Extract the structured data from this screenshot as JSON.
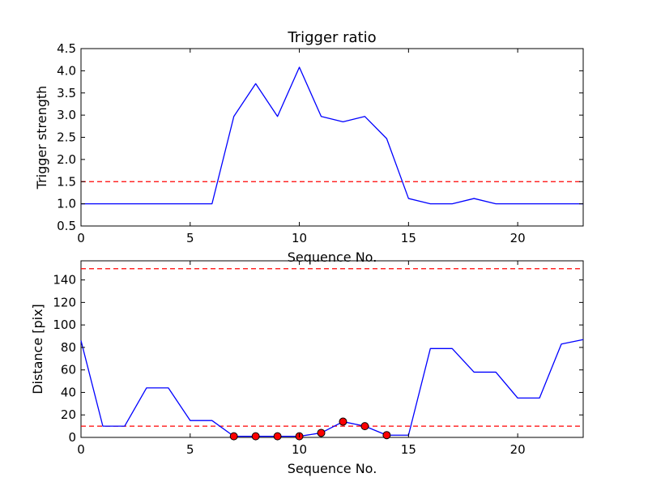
{
  "chart_data": [
    {
      "type": "line",
      "title": "Trigger ratio",
      "xlabel": "Sequence No.",
      "ylabel": "Trigger strength",
      "xlim": [
        0,
        23
      ],
      "ylim": [
        0.5,
        4.5
      ],
      "x_ticks": [
        0,
        5,
        10,
        15,
        20
      ],
      "y_ticks": [
        0.5,
        1.0,
        1.5,
        2.0,
        2.5,
        3.0,
        3.5,
        4.0,
        4.5
      ],
      "y_tick_labels": [
        "0.5",
        "1.0",
        "1.5",
        "2.0",
        "2.5",
        "3.0",
        "3.5",
        "4.0",
        "4.5"
      ],
      "grid": false,
      "series": [
        {
          "color": "#0000ff",
          "x": [
            0,
            1,
            2,
            3,
            4,
            5,
            6,
            7,
            8,
            9,
            10,
            11,
            12,
            13,
            14,
            15,
            16,
            17,
            18,
            19,
            20,
            21,
            22,
            23
          ],
          "values": [
            1.0,
            1.0,
            1.0,
            1.0,
            1.0,
            1.0,
            1.0,
            2.97,
            3.71,
            2.97,
            4.08,
            2.97,
            2.85,
            2.97,
            2.47,
            1.12,
            1.0,
            1.0,
            1.12,
            1.0,
            1.0,
            1.0,
            1.0,
            1.0
          ]
        }
      ],
      "hlines": [
        {
          "y": 1.5,
          "color": "#ff0000",
          "style": "dashed"
        }
      ]
    },
    {
      "type": "line",
      "title": "",
      "xlabel": "Sequence No.",
      "ylabel": "Distance [pix]",
      "xlim": [
        0,
        23
      ],
      "ylim": [
        0,
        157
      ],
      "x_ticks": [
        0,
        5,
        10,
        15,
        20
      ],
      "y_ticks": [
        0,
        20,
        40,
        60,
        80,
        100,
        120,
        140
      ],
      "y_tick_labels": [
        "0",
        "20",
        "40",
        "60",
        "80",
        "100",
        "120",
        "140"
      ],
      "grid": false,
      "series": [
        {
          "color": "#0000ff",
          "x": [
            0,
            1,
            2,
            3,
            4,
            5,
            6,
            7,
            8,
            9,
            10,
            11,
            12,
            13,
            14,
            15,
            16,
            17,
            18,
            19,
            20,
            21,
            22,
            23
          ],
          "values": [
            86,
            10,
            10,
            44,
            44,
            15,
            15,
            1,
            1,
            1,
            1,
            4,
            14,
            10,
            2,
            2,
            79,
            79,
            58,
            58,
            35,
            35,
            83,
            87
          ]
        }
      ],
      "markers": {
        "color": "#ff0000",
        "x": [
          7,
          8,
          9,
          10,
          11,
          12,
          13,
          14
        ],
        "values": [
          1,
          1,
          1,
          1,
          4,
          14,
          10,
          2
        ]
      },
      "hlines": [
        {
          "y": 150,
          "color": "#ff0000",
          "style": "dashed"
        },
        {
          "y": 10,
          "color": "#ff0000",
          "style": "dashed"
        }
      ]
    }
  ]
}
